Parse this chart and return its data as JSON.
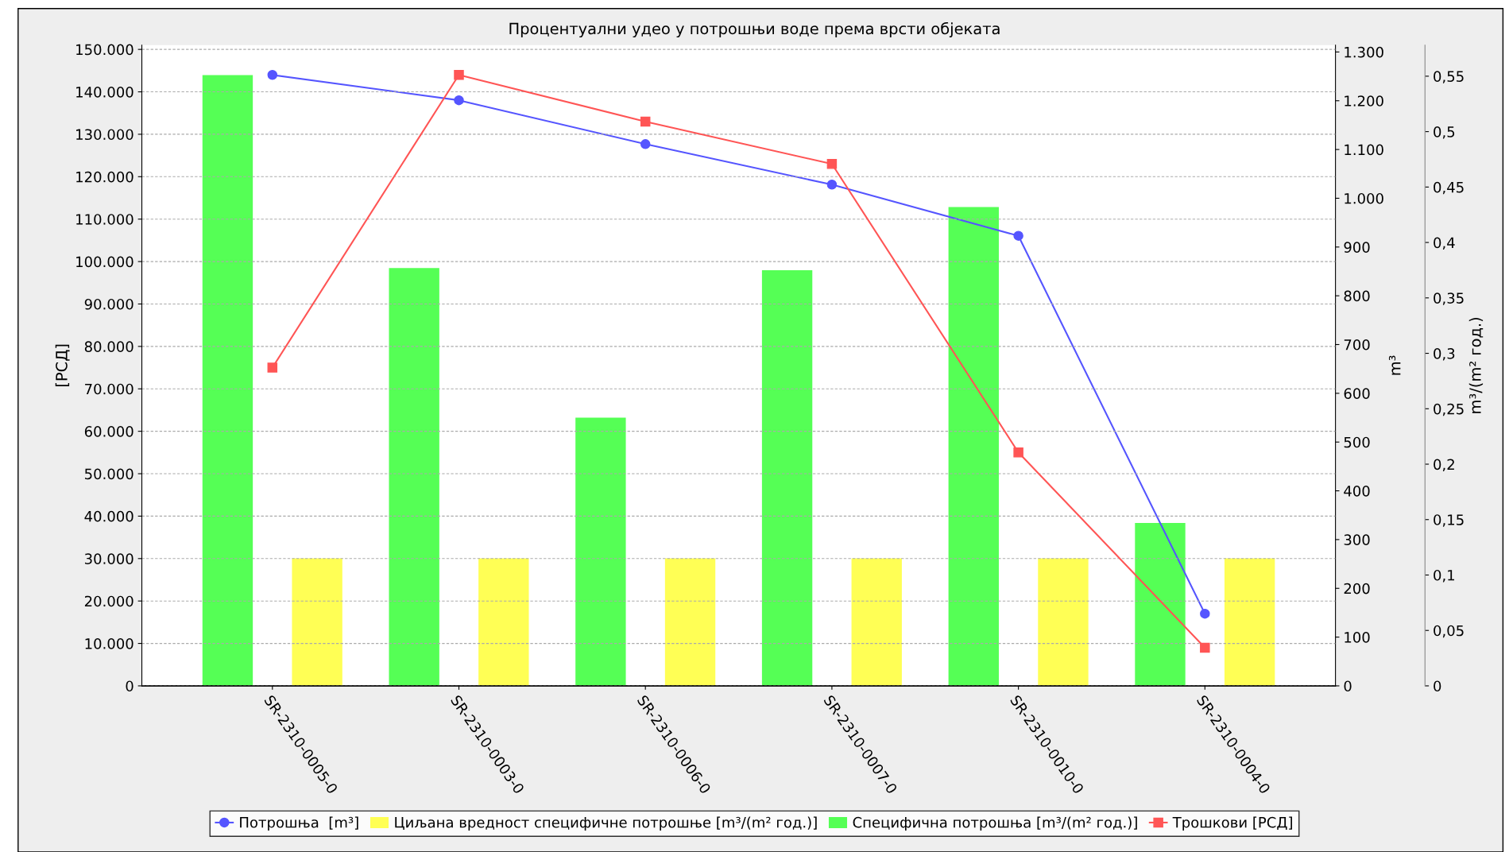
{
  "chart_data": {
    "type": "bar",
    "title": "Процентуални удео у потрошњи воде према врсти објеката",
    "categories": [
      "SR-2310-0005-0",
      "SR-2310-0003-0",
      "SR-2310-0006-0",
      "SR-2310-0007-0",
      "SR-2310-0010-0",
      "SR-2310-0004-0"
    ],
    "series": [
      {
        "name": "Потрошња  [m³]",
        "type": "line",
        "axis": "y2",
        "color": "#5555ff",
        "marker": "circle",
        "values": [
          1253,
          1201,
          1111,
          1028,
          923,
          148
        ]
      },
      {
        "name": "Циљана вредност специфичне потрошње [m³/(m² год.)]",
        "axis": "y3",
        "color": "#ffff55",
        "values": [
          0.115,
          0.115,
          0.115,
          0.115,
          0.115,
          0.115
        ]
      },
      {
        "name": "Специфична потрошња [m³/(m² год.)]",
        "axis": "y3",
        "color": "#55ff55",
        "values": [
          0.551,
          0.377,
          0.242,
          0.375,
          0.432,
          0.147
        ]
      },
      {
        "name": "Трошкови [РСД]",
        "type": "line",
        "axis": "y",
        "color": "#ff5555",
        "marker": "square",
        "values": [
          75000,
          144000,
          133000,
          123000,
          55000,
          9000
        ]
      }
    ],
    "ylabel": "[РСД]",
    "y2label": "m³",
    "y3label": "m³/(m² год.)",
    "ylim": [
      0,
      151000
    ],
    "yticks": [
      0,
      {
        "value": 10000,
        "label": "10.000"
      },
      {
        "value": 20000,
        "label": "20.000"
      },
      {
        "value": 30000,
        "label": "30.000"
      },
      {
        "value": 40000,
        "label": "40.000"
      },
      {
        "value": 50000,
        "label": "50.000"
      },
      {
        "value": 60000,
        "label": "60.000"
      },
      {
        "value": 70000,
        "label": "70.000"
      },
      {
        "value": 80000,
        "label": "80.000"
      },
      {
        "value": 90000,
        "label": "90.000"
      },
      {
        "value": 100000,
        "label": "100.000"
      },
      {
        "value": 110000,
        "label": "110.000"
      },
      {
        "value": 120000,
        "label": "120.000"
      },
      {
        "value": 130000,
        "label": "130.000"
      },
      {
        "value": 140000,
        "label": "140.000"
      },
      {
        "value": 150000,
        "label": "150.000"
      }
    ],
    "y2lim": [
      0,
      1314
    ],
    "y2ticks": [
      0,
      100,
      200,
      300,
      400,
      500,
      600,
      700,
      800,
      900,
      {
        "value": 1000,
        "label": "1.000"
      },
      {
        "value": 1100,
        "label": "1.100"
      },
      {
        "value": 1200,
        "label": "1.200"
      },
      {
        "value": 1300,
        "label": "1.300"
      }
    ],
    "y3lim": [
      0,
      0.578
    ],
    "y3ticks": [
      0,
      {
        "value": 0.05,
        "label": "0,05"
      },
      {
        "value": 0.1,
        "label": "0,1"
      },
      {
        "value": 0.15,
        "label": "0,15"
      },
      {
        "value": 0.2,
        "label": "0,2"
      },
      {
        "value": 0.25,
        "label": "0,25"
      },
      {
        "value": 0.3,
        "label": "0,3"
      },
      {
        "value": 0.35,
        "label": "0,35"
      },
      {
        "value": 0.4,
        "label": "0,4"
      },
      {
        "value": 0.45,
        "label": "0,45"
      },
      {
        "value": 0.5,
        "label": "0,5"
      },
      {
        "value": 0.55,
        "label": "0,55"
      }
    ],
    "grid": "y",
    "legend": "bottom"
  }
}
